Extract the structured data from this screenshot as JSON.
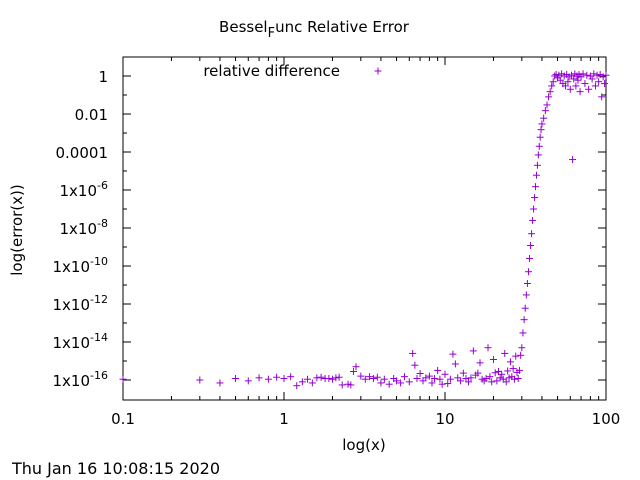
{
  "chart_data": {
    "type": "scatter",
    "title_parts": [
      "Bessel",
      "F",
      "unc Relative Error"
    ],
    "xlabel": "log(x)",
    "ylabel": "log(error(x))",
    "x_scale": "log",
    "y_scale": "log",
    "xlim": [
      0.1,
      100
    ],
    "ylim": [
      1e-17,
      3.2
    ],
    "x_ticks": [
      {
        "value": 0.1,
        "label": "0.1"
      },
      {
        "value": 1,
        "label": "1"
      },
      {
        "value": 10,
        "label": "10"
      },
      {
        "value": 100,
        "label": "100"
      }
    ],
    "y_ticks": [
      {
        "value": 1e-16,
        "label": "1x10",
        "exp": "-16"
      },
      {
        "value": 1e-14,
        "label": "1x10",
        "exp": "-14"
      },
      {
        "value": 1e-12,
        "label": "1x10",
        "exp": "-12"
      },
      {
        "value": 1e-10,
        "label": "1x10",
        "exp": "-10"
      },
      {
        "value": 1e-08,
        "label": "1x10",
        "exp": "-8"
      },
      {
        "value": 1e-06,
        "label": "1x10",
        "exp": "-6"
      },
      {
        "value": 0.0001,
        "label": "0.0001",
        "exp": ""
      },
      {
        "value": 0.01,
        "label": "0.01",
        "exp": ""
      },
      {
        "value": 1,
        "label": "1",
        "exp": ""
      }
    ],
    "legend_position": "top-left",
    "grid": false,
    "series": [
      {
        "name": "relative difference",
        "color": "#9400d3",
        "marker": "plus",
        "points": [
          [
            0.1,
            1.1e-16
          ],
          [
            0.3,
            1e-16
          ],
          [
            0.4,
            7e-17
          ],
          [
            0.5,
            1.2e-16
          ],
          [
            0.6,
            9e-17
          ],
          [
            0.7,
            1.3e-16
          ],
          [
            0.8,
            1.1e-16
          ],
          [
            0.9,
            1.4e-16
          ],
          [
            1.0,
            1.2e-16
          ],
          [
            1.1,
            1.5e-16
          ],
          [
            1.2,
            5e-17
          ],
          [
            1.3,
            8e-17
          ],
          [
            1.4,
            1.1e-16
          ],
          [
            1.5,
            7e-17
          ],
          [
            1.6,
            1.3e-16
          ],
          [
            1.7,
            1.4e-16
          ],
          [
            1.8,
            1.2e-16
          ],
          [
            1.9,
            1.2e-16
          ],
          [
            2.0,
            1.1e-16
          ],
          [
            2.1,
            1.3e-16
          ],
          [
            2.2,
            1.4e-16
          ],
          [
            2.3,
            5.5e-17
          ],
          [
            2.5,
            6e-17
          ],
          [
            2.6,
            5.5e-17
          ],
          [
            2.7,
            2.8e-16
          ],
          [
            2.8,
            5e-16
          ],
          [
            3.0,
            1.6e-16
          ],
          [
            3.2,
            1.1e-16
          ],
          [
            3.4,
            1.5e-16
          ],
          [
            3.6,
            1.2e-16
          ],
          [
            3.8,
            1.4e-16
          ],
          [
            4.0,
            7e-17
          ],
          [
            4.2,
            1.1e-16
          ],
          [
            4.5,
            6e-17
          ],
          [
            4.8,
            1.2e-16
          ],
          [
            5.0,
            9e-17
          ],
          [
            5.3,
            7e-17
          ],
          [
            5.6,
            1.5e-16
          ],
          [
            6.0,
            8e-17
          ],
          [
            6.3,
            2.5e-15
          ],
          [
            6.5,
            6e-16
          ],
          [
            6.7,
            1.2e-16
          ],
          [
            7.0,
            2.2e-16
          ],
          [
            7.3,
            9e-17
          ],
          [
            7.6,
            1.3e-16
          ],
          [
            8.0,
            1.6e-16
          ],
          [
            8.3,
            7e-17
          ],
          [
            8.6,
            1.2e-16
          ],
          [
            9.0,
            3.2e-16
          ],
          [
            9.3,
            1.1e-16
          ],
          [
            9.6,
            6e-17
          ],
          [
            10.0,
            2e-16
          ],
          [
            10.4,
            6.5e-17
          ],
          [
            10.8,
            1.1e-16
          ],
          [
            11.2,
            2.3e-15
          ],
          [
            11.6,
            7e-16
          ],
          [
            12.0,
            1.3e-16
          ],
          [
            12.5,
            9e-17
          ],
          [
            13.0,
            2.3e-16
          ],
          [
            13.5,
            1.2e-16
          ],
          [
            14.0,
            8e-17
          ],
          [
            14.5,
            1.3e-16
          ],
          [
            15.0,
            3.4e-15
          ],
          [
            15.5,
            1.8e-16
          ],
          [
            16.0,
            2.3e-16
          ],
          [
            16.5,
            8e-16
          ],
          [
            17.0,
            1.1e-16
          ],
          [
            17.5,
            9e-17
          ],
          [
            18.0,
            1.2e-16
          ],
          [
            18.5,
            5e-15
          ],
          [
            19.0,
            1.5e-16
          ],
          [
            19.5,
            8e-17
          ],
          [
            20.0,
            1.2e-15
          ],
          [
            20.5,
            2.4e-16
          ],
          [
            21.0,
            9e-17
          ],
          [
            21.5,
            2.8e-16
          ],
          [
            22.0,
            1.3e-16
          ],
          [
            22.5,
            2e-16
          ],
          [
            23.0,
            1.1e-16
          ],
          [
            23.5,
            2.5e-15
          ],
          [
            24.0,
            8e-17
          ],
          [
            24.5,
            3e-16
          ],
          [
            25.0,
            1.3e-16
          ],
          [
            25.5,
            9e-16
          ],
          [
            26.0,
            1.5e-16
          ],
          [
            26.5,
            4e-16
          ],
          [
            27.0,
            1.1e-16
          ],
          [
            27.5,
            1.8e-15
          ],
          [
            28.0,
            2.5e-16
          ],
          [
            28.5,
            1.2e-16
          ],
          [
            29.0,
            3.2e-16
          ],
          [
            29.5,
            2e-15
          ],
          [
            30.0,
            5e-15
          ],
          [
            30.5,
            3e-14
          ],
          [
            31.0,
            1.5e-13
          ],
          [
            31.5,
            6e-13
          ],
          [
            32.0,
            3e-12
          ],
          [
            32.5,
            1.2e-11
          ],
          [
            33.0,
            5e-11
          ],
          [
            33.5,
            2.5e-10
          ],
          [
            34.0,
            1.2e-09
          ],
          [
            34.5,
            5e-09
          ],
          [
            35.0,
            2.5e-08
          ],
          [
            35.5,
            1e-07
          ],
          [
            36.0,
            4e-07
          ],
          [
            36.5,
            1.5e-06
          ],
          [
            37.0,
            6e-06
          ],
          [
            37.5,
            2e-05
          ],
          [
            38.0,
            7e-05
          ],
          [
            38.5,
            0.0002
          ],
          [
            39.0,
            0.0006
          ],
          [
            39.5,
            0.0015
          ],
          [
            40.0,
            0.003
          ],
          [
            41.0,
            0.006
          ],
          [
            42.0,
            0.015
          ],
          [
            43.0,
            0.03
          ],
          [
            44.0,
            0.08
          ],
          [
            45.0,
            0.15
          ],
          [
            46.0,
            0.3
          ],
          [
            47.0,
            0.5
          ],
          [
            48.0,
            1
          ],
          [
            49.0,
            1.2
          ],
          [
            50.0,
            0.8
          ],
          [
            51.0,
            1.1
          ],
          [
            52.0,
            0.6
          ],
          [
            53.0,
            1.3
          ],
          [
            54.0,
            0.4
          ],
          [
            55.0,
            1.0
          ],
          [
            56.0,
            0.3
          ],
          [
            57.0,
            1.2
          ],
          [
            58.0,
            0.5
          ],
          [
            59.0,
            0.9
          ],
          [
            60.0,
            0.2
          ],
          [
            61.0,
            1.1
          ],
          [
            62.0,
            4e-05
          ],
          [
            63.0,
            0.7
          ],
          [
            64.0,
            1.3
          ],
          [
            65.0,
            0.3
          ],
          [
            66.0,
            1.0
          ],
          [
            67.0,
            0.6
          ],
          [
            68.0,
            1.2
          ],
          [
            69.0,
            0.15
          ],
          [
            70.0,
            0.9
          ],
          [
            72.0,
            1.3
          ],
          [
            74.0,
            0.4
          ],
          [
            76.0,
            1.1
          ],
          [
            78.0,
            0.2
          ],
          [
            80.0,
            1.0
          ],
          [
            82.0,
            0.7
          ],
          [
            84.0,
            1.3
          ],
          [
            86.0,
            0.3
          ],
          [
            88.0,
            1.1
          ],
          [
            90.0,
            0.5
          ],
          [
            92.0,
            1.2
          ],
          [
            94.0,
            0.08
          ],
          [
            96.0,
            0.9
          ],
          [
            98.0,
            0.4
          ],
          [
            100.0,
            1.1
          ]
        ]
      }
    ]
  },
  "timestamp": "Thu Jan 16 10:08:15 2020"
}
